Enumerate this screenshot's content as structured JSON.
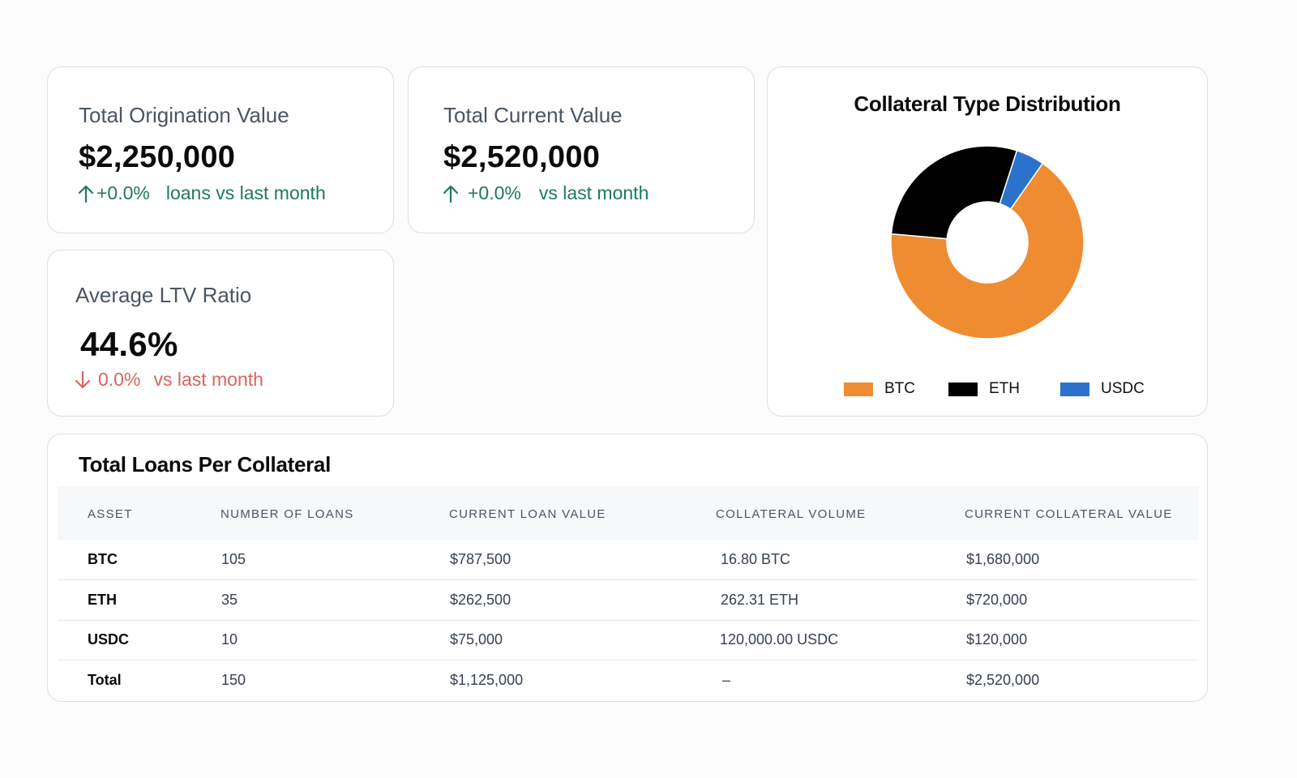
{
  "stats": {
    "origination": {
      "label": "Total Origination Value",
      "value": "$2,250,000",
      "change": "+0.0%",
      "suffix": "loans vs last month"
    },
    "current": {
      "label": "Total Current Value",
      "value": "$2,520,000",
      "change": "+0.0%",
      "suffix": "vs last month"
    },
    "ltv": {
      "label": "Average LTV Ratio",
      "value": "44.6%",
      "change": "0.0%",
      "suffix": "vs last month"
    }
  },
  "chart_data": {
    "type": "pie",
    "title": "Collateral Type Distribution",
    "categories": [
      "BTC",
      "ETH",
      "USDC"
    ],
    "values": [
      1680000,
      720000,
      120000
    ],
    "colors": [
      "#ef8c32",
      "#000000",
      "#2a72cc"
    ],
    "donut": true,
    "legend_position": "bottom"
  },
  "table": {
    "title": "Total Loans Per Collateral",
    "columns": [
      "ASSET",
      "NUMBER OF LOANS",
      "CURRENT LOAN VALUE",
      "COLLATERAL VOLUME",
      "CURRENT COLLATERAL VALUE"
    ],
    "rows": [
      [
        "BTC",
        "105",
        "$787,500",
        "16.80 BTC",
        "$1,680,000"
      ],
      [
        "ETH",
        "35",
        "$262,500",
        "262.31 ETH",
        "$720,000"
      ],
      [
        "USDC",
        "10",
        "$75,000",
        "120,000.00 USDC",
        "$120,000"
      ],
      [
        "Total",
        "150",
        "$1,125,000",
        "–",
        "$2,520,000"
      ]
    ]
  },
  "icons": {
    "up": "arrow-up-icon",
    "down": "arrow-down-icon"
  },
  "colors": {
    "positive": "#1e7a5a",
    "negative": "#d9655e"
  }
}
